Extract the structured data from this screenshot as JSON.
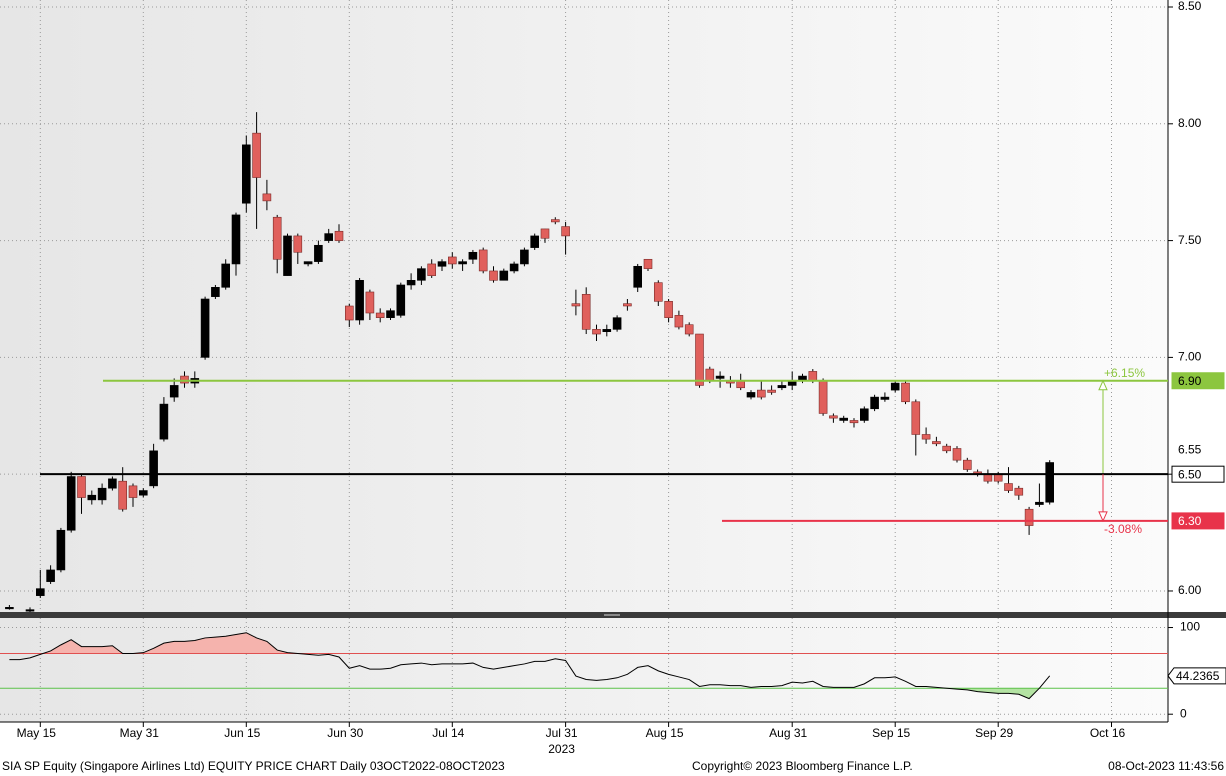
{
  "footer": {
    "left": "SIA SP Equity (Singapore Airlines Ltd) EQUITY PRICE CHART  Daily 03OCT2022-08OCT2023",
    "center": "Copyright© 2023 Bloomberg Finance L.P.",
    "right": "08-Oct-2023 11:43:56"
  },
  "chart_data": [
    {
      "type": "candlestick",
      "categories": [
        null,
        null,
        null,
        "May 15",
        null,
        null,
        null,
        null,
        null,
        null,
        null,
        null,
        null,
        "May 31",
        null,
        null,
        null,
        null,
        null,
        null,
        null,
        null,
        null,
        "Jun 15",
        null,
        null,
        null,
        null,
        null,
        null,
        null,
        null,
        null,
        "Jun 30",
        null,
        null,
        null,
        null,
        null,
        null,
        null,
        null,
        null,
        "Jul 14",
        null,
        null,
        null,
        null,
        null,
        null,
        null,
        null,
        null,
        null,
        "Jul 31",
        null,
        null,
        null,
        null,
        null,
        null,
        null,
        null,
        null,
        "Aug 15",
        null,
        null,
        null,
        null,
        null,
        null,
        null,
        null,
        null,
        null,
        null,
        "Aug 31",
        null,
        null,
        null,
        null,
        null,
        null,
        null,
        null,
        null,
        "Sep 15",
        null,
        null,
        null,
        null,
        null,
        null,
        null,
        null,
        null,
        "Sep 29",
        null,
        null,
        null,
        null,
        null,
        null,
        null,
        null,
        null,
        null,
        "Oct 16"
      ],
      "year_label": "2023",
      "open": [
        5.93,
        null,
        5.92,
        5.98,
        6.04,
        6.09,
        6.26,
        6.49,
        6.39,
        6.39,
        6.44,
        6.47,
        6.45,
        6.41,
        6.45,
        6.65,
        6.83,
        6.92,
        6.89,
        7.0,
        7.26,
        7.3,
        7.4,
        7.66,
        7.96,
        7.7,
        7.6,
        7.35,
        7.52,
        7.4,
        7.41,
        7.5,
        7.54,
        7.22,
        7.16,
        7.28,
        7.19,
        7.17,
        7.18,
        7.31,
        7.33,
        7.4,
        7.39,
        7.43,
        7.4,
        7.42,
        7.46,
        7.37,
        7.33,
        7.37,
        7.4,
        7.47,
        7.55,
        7.59,
        7.56,
        7.23,
        7.27,
        7.12,
        7.11,
        7.12,
        7.23,
        7.3,
        7.42,
        7.32,
        7.24,
        7.18,
        7.14,
        7.1,
        6.95,
        6.91,
        6.9,
        6.9,
        6.83,
        6.86,
        6.86,
        6.87,
        6.88,
        6.9,
        6.94,
        6.9,
        6.75,
        6.73,
        6.73,
        6.73,
        6.78,
        6.82,
        6.86,
        6.89,
        6.81,
        6.67,
        6.64,
        6.62,
        6.61,
        6.56,
        6.51,
        6.5,
        6.5,
        6.46,
        6.44,
        6.35,
        6.37,
        6.38,
        null,
        null,
        null,
        null,
        null,
        null
      ],
      "high": [
        5.94,
        null,
        5.93,
        6.09,
        6.11,
        6.27,
        6.51,
        6.5,
        6.43,
        6.46,
        6.49,
        6.53,
        6.46,
        6.44,
        6.63,
        6.83,
        6.91,
        6.94,
        6.94,
        7.26,
        7.31,
        7.42,
        7.62,
        7.95,
        8.05,
        7.76,
        7.61,
        7.53,
        7.53,
        7.41,
        7.5,
        7.55,
        7.57,
        7.23,
        7.34,
        7.29,
        7.21,
        7.21,
        7.32,
        7.36,
        7.39,
        7.42,
        7.42,
        7.45,
        7.42,
        7.46,
        7.47,
        7.39,
        7.38,
        7.41,
        7.47,
        7.53,
        7.55,
        7.6,
        7.58,
        7.29,
        7.3,
        7.14,
        7.14,
        7.18,
        7.25,
        7.4,
        7.42,
        7.33,
        7.25,
        7.2,
        7.15,
        7.1,
        6.96,
        6.94,
        6.92,
        6.93,
        6.86,
        6.9,
        6.88,
        6.9,
        6.94,
        6.93,
        6.95,
        6.91,
        6.76,
        6.75,
        6.74,
        6.79,
        6.84,
        6.85,
        6.9,
        6.9,
        6.82,
        6.7,
        6.66,
        6.63,
        6.62,
        6.57,
        6.52,
        6.52,
        6.51,
        6.53,
        6.45,
        6.36,
        6.46,
        6.56,
        null,
        null,
        null,
        null,
        null,
        null
      ],
      "low": [
        5.92,
        null,
        5.91,
        5.97,
        6.03,
        6.08,
        6.25,
        6.33,
        6.37,
        6.37,
        6.43,
        6.34,
        6.36,
        6.4,
        6.44,
        6.64,
        6.81,
        6.87,
        6.87,
        6.99,
        7.25,
        7.29,
        7.35,
        7.62,
        7.55,
        7.63,
        7.36,
        7.35,
        7.4,
        7.39,
        7.4,
        7.49,
        7.49,
        7.13,
        7.14,
        7.16,
        7.15,
        7.16,
        7.17,
        7.29,
        7.31,
        7.34,
        7.37,
        7.38,
        7.37,
        7.4,
        7.36,
        7.32,
        7.33,
        7.36,
        7.39,
        7.46,
        7.49,
        7.57,
        7.44,
        7.18,
        7.1,
        7.07,
        7.09,
        7.11,
        7.2,
        7.28,
        7.37,
        7.22,
        7.15,
        7.12,
        7.09,
        6.87,
        6.89,
        6.87,
        6.87,
        6.86,
        6.82,
        6.82,
        6.84,
        6.86,
        6.86,
        6.89,
        6.89,
        6.75,
        6.72,
        6.72,
        6.7,
        6.72,
        6.77,
        6.81,
        6.85,
        6.8,
        6.58,
        6.63,
        6.62,
        6.59,
        6.55,
        6.51,
        6.49,
        6.46,
        6.46,
        6.42,
        6.39,
        6.24,
        6.36,
        6.37,
        null,
        null,
        null,
        null,
        null,
        null
      ],
      "close": [
        5.93,
        null,
        5.92,
        6.01,
        6.09,
        6.26,
        6.49,
        6.4,
        6.41,
        6.44,
        6.48,
        6.35,
        6.4,
        6.43,
        6.6,
        6.8,
        6.88,
        6.89,
        6.91,
        7.25,
        7.3,
        7.4,
        7.61,
        7.91,
        7.77,
        7.67,
        7.42,
        7.52,
        7.45,
        7.41,
        7.48,
        7.53,
        7.5,
        7.16,
        7.33,
        7.19,
        7.17,
        7.2,
        7.31,
        7.33,
        7.38,
        7.35,
        7.41,
        7.4,
        7.41,
        7.45,
        7.37,
        7.33,
        7.37,
        7.4,
        7.46,
        7.52,
        7.51,
        7.58,
        7.52,
        7.22,
        7.12,
        7.1,
        7.12,
        7.17,
        7.22,
        7.39,
        7.38,
        7.24,
        7.17,
        7.13,
        7.1,
        6.88,
        6.9,
        6.92,
        6.89,
        6.87,
        6.85,
        6.83,
        6.85,
        6.88,
        6.9,
        6.92,
        6.9,
        6.76,
        6.74,
        6.74,
        6.72,
        6.78,
        6.83,
        6.83,
        6.89,
        6.81,
        6.67,
        6.65,
        6.63,
        6.6,
        6.56,
        6.52,
        6.5,
        6.47,
        6.47,
        6.43,
        6.41,
        6.28,
        6.38,
        6.55,
        null,
        null,
        null,
        null,
        null,
        null
      ],
      "up_color": "#000000",
      "down_color": "#e0605c",
      "ylim": [
        5.91,
        8.53
      ],
      "yticks": [
        {
          "value": 6,
          "label": "6.00"
        },
        {
          "value": 6.5,
          "label": "6.50"
        },
        {
          "value": 7,
          "label": "7.00"
        },
        {
          "value": 7.5,
          "label": "7.50"
        },
        {
          "value": 8,
          "label": "8.00"
        },
        {
          "value": 8.5,
          "label": "8.50"
        }
      ],
      "grid": true,
      "levels": [
        {
          "value": 6.9,
          "label": "6.90",
          "color": "#8cc63f",
          "box_color": "#8cc63f",
          "text_color": "#000000",
          "change": "+6.15%"
        },
        {
          "value": 6.5,
          "label": "6.50",
          "color": "#000000",
          "box_color": "#ffffff",
          "text_color": "#000000"
        },
        {
          "value": 6.3,
          "label": "6.30",
          "color": "#e8334a",
          "box_color": "#e8334a",
          "text_color": "#ffffff",
          "change": "-3.08%"
        }
      ]
    },
    {
      "type": "line",
      "values": [
        63,
        63,
        65,
        69,
        73,
        80,
        86,
        78,
        78,
        78,
        79,
        70,
        70,
        71,
        76,
        82,
        84,
        84,
        85,
        88,
        89,
        90,
        92,
        94,
        88,
        84,
        74,
        71,
        70,
        69,
        68,
        69,
        66,
        53,
        56,
        52,
        52,
        53,
        57,
        58,
        59,
        57,
        58,
        58,
        58,
        59,
        54,
        52,
        54,
        56,
        58,
        61,
        61,
        64,
        62,
        44,
        40,
        39,
        40,
        42,
        46,
        54,
        56,
        50,
        46,
        43,
        40,
        32,
        34,
        34,
        33,
        33,
        31,
        32,
        32,
        33,
        37,
        36,
        38,
        32,
        31,
        31,
        31,
        35,
        42,
        42,
        43,
        38,
        32,
        32,
        31,
        30,
        29,
        28,
        26,
        25,
        24,
        24,
        23,
        18,
        30,
        44.2365,
        null,
        null,
        null,
        null,
        null,
        null
      ],
      "color": "#000000",
      "ylim": [
        -9,
        111
      ],
      "yticks": [
        0,
        100
      ],
      "overbought": 70,
      "overbought_color": "#e05050",
      "overbought_fill": "#f5b3ad",
      "oversold": 30,
      "oversold_color": "#5cc24a",
      "oversold_fill": "#b4e3a3"
    }
  ]
}
